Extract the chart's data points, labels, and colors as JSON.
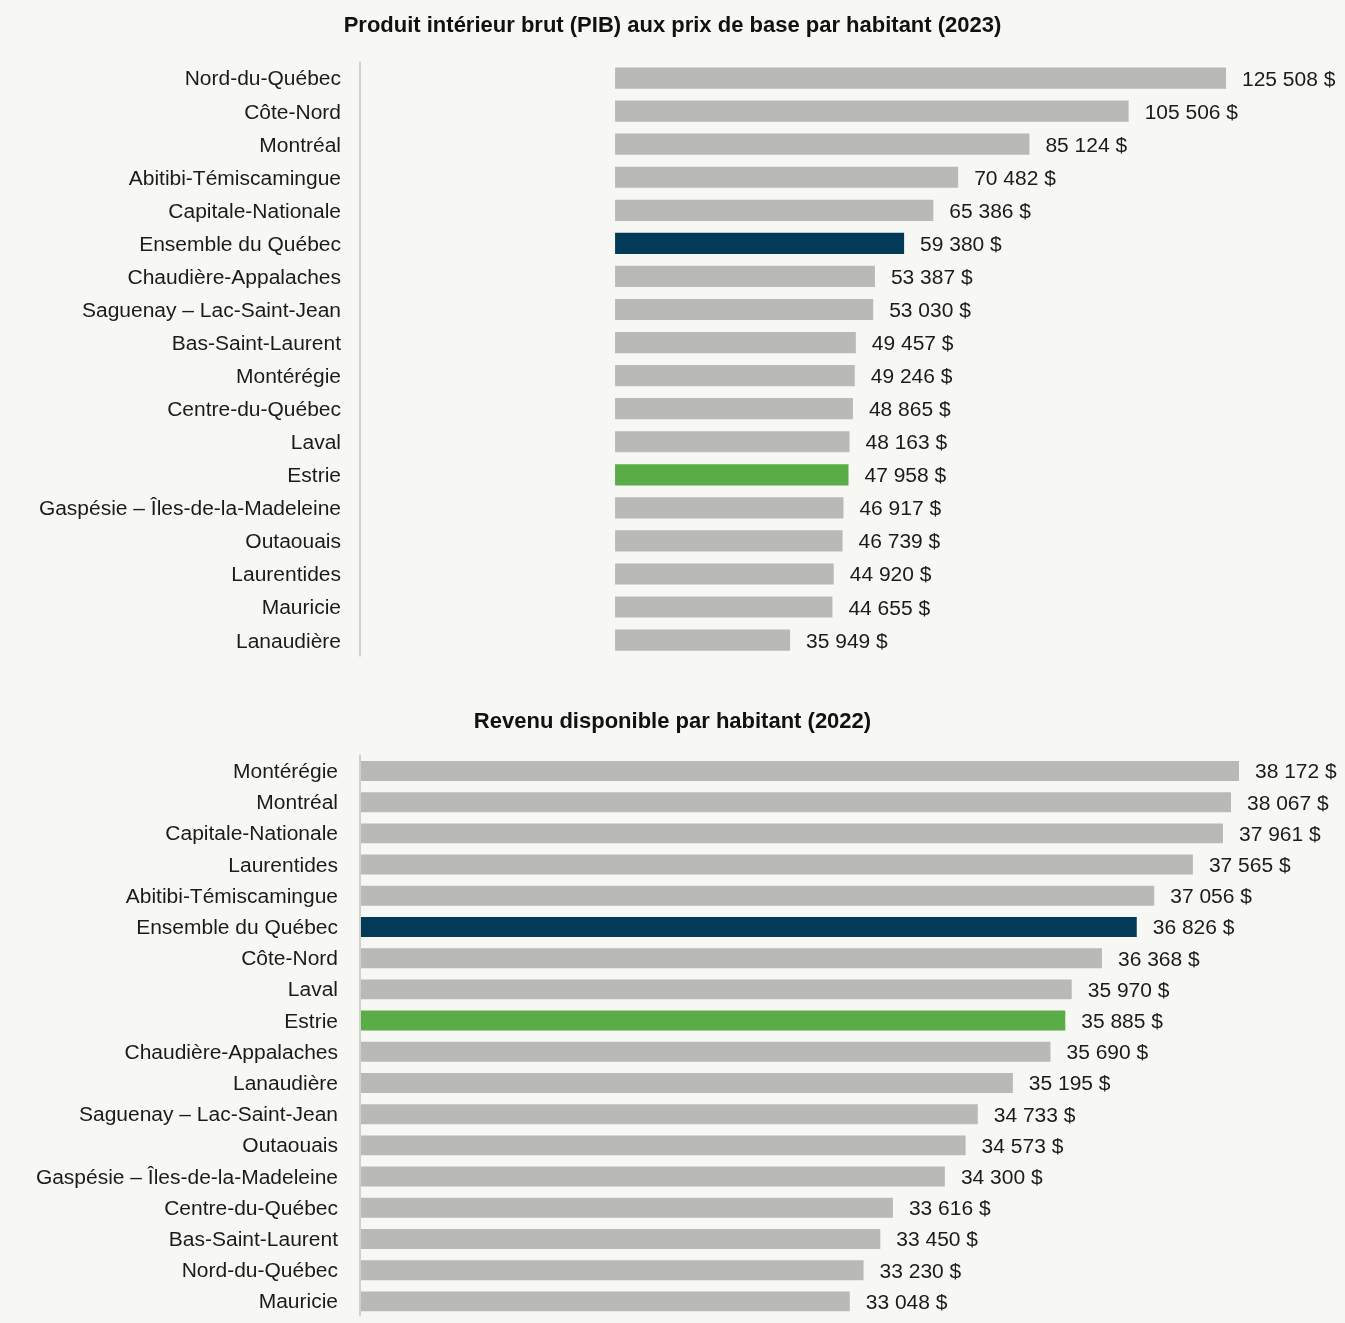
{
  "chart_data": [
    {
      "type": "bar",
      "orientation": "horizontal",
      "title": "Produit intérieur brut (PIB) aux prix de base par habitant (2023)",
      "categories": [
        "Nord-du-Québec",
        "Côte-Nord",
        "Montréal",
        "Abitibi-Témiscamingue",
        "Capitale-Nationale",
        "Ensemble du Québec",
        "Chaudière-Appalaches",
        "Saguenay – Lac-Saint-Jean",
        "Bas-Saint-Laurent",
        "Montérégie",
        "Centre-du-Québec",
        "Laval",
        "Estrie",
        "Gaspésie – Îles-de-la-Madeleine",
        "Outaouais",
        "Laurentides",
        "Mauricie",
        "Lanaudière"
      ],
      "values": [
        125508,
        105506,
        85124,
        70482,
        65386,
        59380,
        53387,
        53030,
        49457,
        49246,
        48865,
        48163,
        47958,
        46917,
        46739,
        44920,
        44655,
        35949
      ],
      "value_labels": [
        "125 508 $",
        "105 506 $",
        "85 124 $",
        "70 482 $",
        "65 386 $",
        "59 380 $",
        "53 387 $",
        "53 030 $",
        "49 457 $",
        "49 246 $",
        "48 865 $",
        "48 163 $",
        "47 958 $",
        "46 917 $",
        "46 739 $",
        "44 920 $",
        "44 655 $",
        "35 949 $"
      ],
      "colors": [
        "#b9bab7",
        "#b9bab7",
        "#b9bab7",
        "#b9bab7",
        "#b9bab7",
        "#023a57",
        "#b9bab7",
        "#b9bab7",
        "#b9bab7",
        "#b9bab7",
        "#b9bab7",
        "#b9bab7",
        "#5aac46",
        "#b9bab7",
        "#b9bab7",
        "#b9bab7",
        "#b9bab7",
        "#b9bab7"
      ],
      "xlim": [
        -52400,
        125508
      ]
    },
    {
      "type": "bar",
      "orientation": "horizontal",
      "title": "Revenu disponible par habitant (2022)",
      "categories": [
        "Montérégie",
        "Montréal",
        "Capitale-Nationale",
        "Laurentides",
        "Abitibi-Témiscamingue",
        "Ensemble du Québec",
        "Côte-Nord",
        "Laval",
        "Estrie",
        "Chaudière-Appalaches",
        "Lanaudière",
        "Saguenay – Lac-Saint-Jean",
        "Outaouais",
        "Gaspésie – Îles-de-la-Madeleine",
        "Centre-du-Québec",
        "Bas-Saint-Laurent",
        "Nord-du-Québec",
        "Mauricie"
      ],
      "values": [
        38172,
        38067,
        37961,
        37565,
        37056,
        36826,
        36368,
        35970,
        35885,
        35690,
        35195,
        34733,
        34573,
        34300,
        33616,
        33450,
        33230,
        33048
      ],
      "value_labels": [
        "38 172 $",
        "38 067 $",
        "37 961 $",
        "37 565 $",
        "37 056 $",
        "36 826 $",
        "36 368 $",
        "35 970 $",
        "35 885 $",
        "35 690 $",
        "35 195 $",
        "34 733 $",
        "34 573 $",
        "34 300 $",
        "33 616 $",
        "33 450 $",
        "33 230 $",
        "33 048 $"
      ],
      "colors": [
        "#b9bab7",
        "#b9bab7",
        "#b9bab7",
        "#b9bab7",
        "#b9bab7",
        "#023a57",
        "#b9bab7",
        "#b9bab7",
        "#5aac46",
        "#b9bab7",
        "#b9bab7",
        "#b9bab7",
        "#b9bab7",
        "#b9bab7",
        "#b9bab7",
        "#b9bab7",
        "#b9bab7",
        "#b9bab7"
      ],
      "xlim": [
        26600,
        38172
      ]
    }
  ]
}
